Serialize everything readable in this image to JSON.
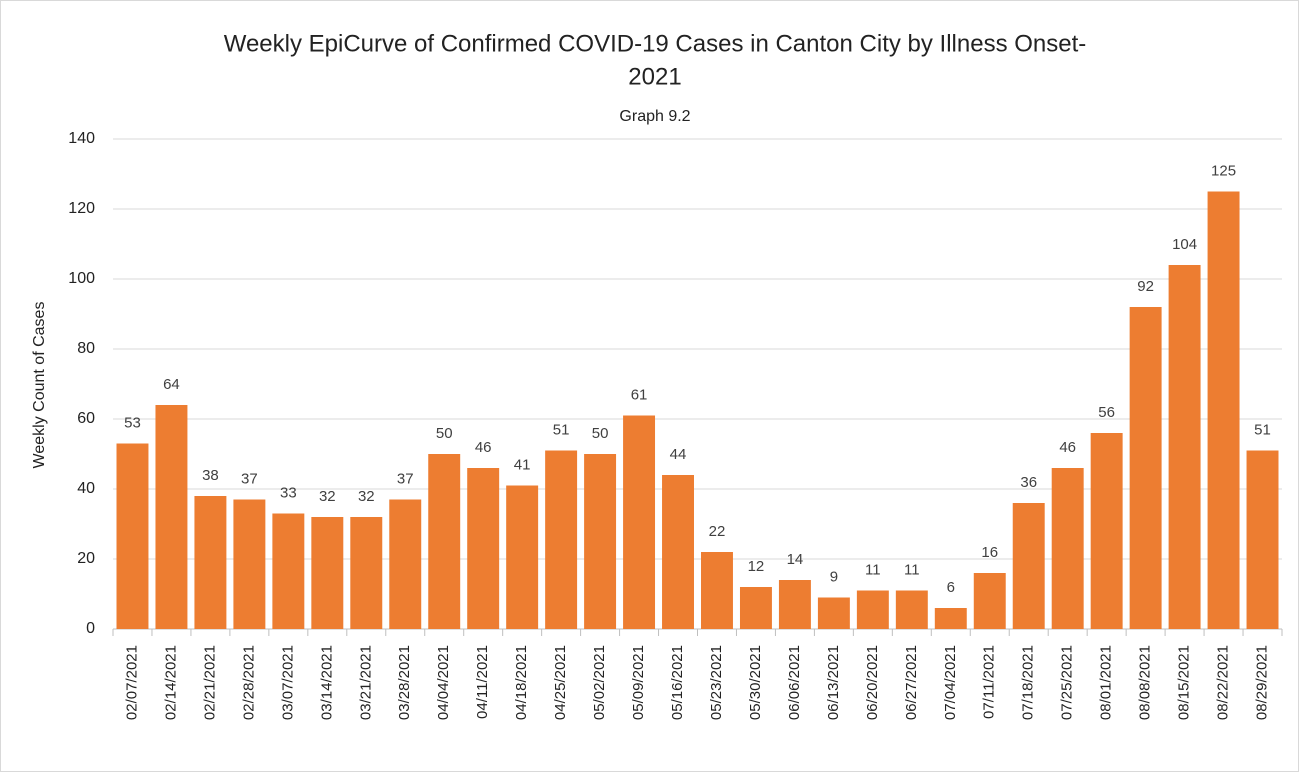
{
  "chart_data": {
    "type": "bar",
    "title": [
      "Weekly EpiCurve of Confirmed COVID-19 Cases in Canton City by Illness Onset-",
      "2021"
    ],
    "subtitle": "Graph 9.2",
    "y_label": "Weekly Count of Cases",
    "categories": [
      "02/07/2021",
      "02/14/2021",
      "02/21/2021",
      "02/28/2021",
      "03/07/2021",
      "03/14/2021",
      "03/21/2021",
      "03/28/2021",
      "04/04/2021",
      "04/11/2021",
      "04/18/2021",
      "04/25/2021",
      "05/02/2021",
      "05/09/2021",
      "05/16/2021",
      "05/23/2021",
      "05/30/2021",
      "06/06/2021",
      "06/13/2021",
      "06/20/2021",
      "06/27/2021",
      "07/04/2021",
      "07/11/2021",
      "07/18/2021",
      "07/25/2021",
      "08/01/2021",
      "08/08/2021",
      "08/15/2021",
      "08/22/2021",
      "08/29/2021"
    ],
    "values": [
      53,
      64,
      38,
      37,
      33,
      32,
      32,
      37,
      50,
      46,
      41,
      51,
      50,
      61,
      44,
      22,
      12,
      14,
      9,
      11,
      11,
      6,
      16,
      36,
      46,
      56,
      92,
      104,
      125,
      51
    ],
    "color": "#ed7d31",
    "ylim": [
      0,
      140
    ],
    "yticks": [
      0,
      20,
      40,
      60,
      80,
      100,
      120,
      140
    ],
    "grid": true
  }
}
